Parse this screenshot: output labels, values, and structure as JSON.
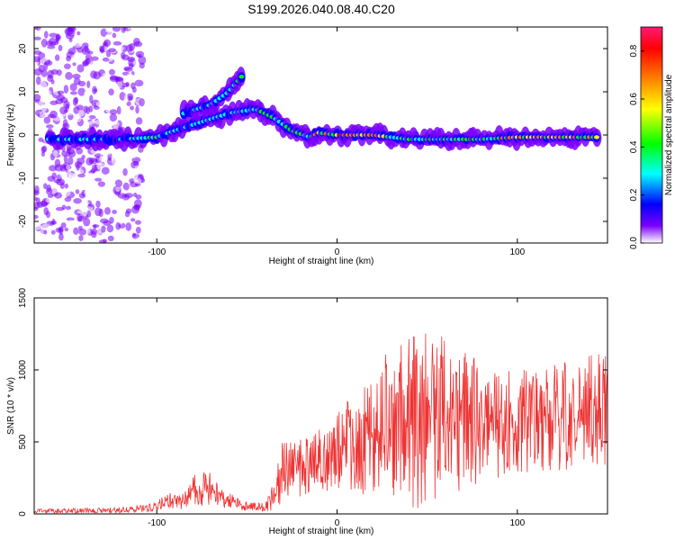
{
  "figure": {
    "title": "S199.2026.040.08.40.C20"
  },
  "chart_data": [
    {
      "type": "heatmap",
      "title": "S199.2026.040.08.40.C20",
      "xlabel": "Height of straight line (km)",
      "ylabel": "Frequency (Hz)",
      "xlim": [
        -168,
        150
      ],
      "ylim": [
        -25,
        25
      ],
      "xticks": [
        -100,
        0,
        100
      ],
      "yticks": [
        -20,
        -10,
        0,
        10,
        20
      ],
      "colorbar": {
        "label": "Normalized spectral amplitude",
        "range": [
          0,
          0.9
        ],
        "ticks": [
          0.0,
          0.2,
          0.4,
          0.6,
          0.8
        ],
        "tick_labels": [
          "0.0",
          "0.2",
          "0.4",
          "0.6",
          "0.8"
        ],
        "colors": [
          "#ffffff",
          "#7a00ff",
          "#0000ff",
          "#00ffff",
          "#00ff00",
          "#ffff00",
          "#ff8000",
          "#ff0000",
          "#ff1a75"
        ]
      },
      "ridge": [
        {
          "x": -160,
          "f": -1
        },
        {
          "x": -120,
          "f": -1
        },
        {
          "x": -100,
          "f": -0.5
        },
        {
          "x": -90,
          "f": 1
        },
        {
          "x": -75,
          "f": 3
        },
        {
          "x": -60,
          "f": 5
        },
        {
          "x": -45,
          "f": 6
        },
        {
          "x": -35,
          "f": 4
        },
        {
          "x": -25,
          "f": 1
        },
        {
          "x": -15,
          "f": -0.5
        },
        {
          "x": -10,
          "f": 0.5
        },
        {
          "x": 0,
          "f": 0
        },
        {
          "x": 20,
          "f": 0
        },
        {
          "x": 40,
          "f": -1
        },
        {
          "x": 60,
          "f": -1
        },
        {
          "x": 80,
          "f": -1
        },
        {
          "x": 100,
          "f": -0.5
        },
        {
          "x": 120,
          "f": -0.5
        },
        {
          "x": 140,
          "f": -0.5
        }
      ],
      "upper_branch": [
        {
          "x": -85,
          "f": 5
        },
        {
          "x": -70,
          "f": 7
        },
        {
          "x": -60,
          "f": 10
        },
        {
          "x": -52,
          "f": 14
        }
      ]
    },
    {
      "type": "line",
      "xlabel": "Height of straight line (km)",
      "ylabel": "SNR (10 * v/v)",
      "xlim": [
        -168,
        150
      ],
      "ylim": [
        0,
        1500
      ],
      "xticks": [
        -100,
        0,
        100
      ],
      "yticks": [
        0,
        500,
        1000,
        1500
      ],
      "series": [
        {
          "name": "SNR",
          "color": "#ee3333",
          "envelope_x": [
            -168,
            -120,
            -110,
            -100,
            -95,
            -85,
            -80,
            -70,
            -65,
            -50,
            -40,
            -35,
            -30,
            -25,
            -20,
            -10,
            0,
            10,
            20,
            30,
            40,
            50,
            60,
            70,
            80,
            90,
            100,
            110,
            120,
            130,
            140,
            150
          ],
          "envelope_mean": [
            20,
            25,
            35,
            50,
            90,
            80,
            170,
            180,
            110,
            50,
            45,
            120,
            300,
            330,
            320,
            380,
            420,
            480,
            540,
            650,
            680,
            700,
            680,
            650,
            640,
            650,
            680,
            670,
            700,
            680,
            700,
            720
          ],
          "envelope_amp": [
            15,
            20,
            25,
            35,
            60,
            60,
            120,
            120,
            70,
            30,
            30,
            100,
            220,
            200,
            200,
            220,
            300,
            350,
            400,
            550,
            650,
            650,
            600,
            480,
            420,
            400,
            400,
            380,
            400,
            380,
            420,
            400
          ]
        }
      ]
    }
  ]
}
